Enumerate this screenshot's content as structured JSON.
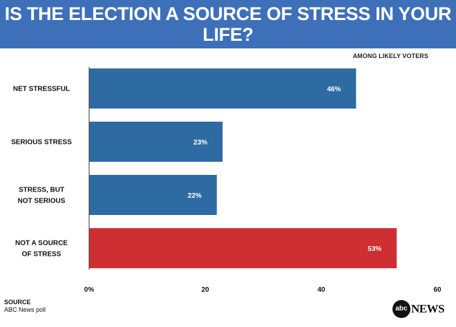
{
  "chart_data": {
    "type": "bar",
    "orientation": "horizontal",
    "title": "IS THE ELECTION A SOURCE OF STRESS IN YOUR LIFE?",
    "subtitle": "AMONG LIKELY VOTERS",
    "categories": [
      "NET STRESSFUL",
      "SERIOUS STRESS",
      "STRESS, BUT NOT SERIOUS",
      "NOT A SOURCE OF STRESS"
    ],
    "category_lines": [
      [
        "NET STRESSFUL"
      ],
      [
        "SERIOUS STRESS"
      ],
      [
        "STRESS, BUT",
        "NOT SERIOUS"
      ],
      [
        "NOT A SOURCE",
        "OF STRESS"
      ]
    ],
    "values": [
      46,
      23,
      22,
      53
    ],
    "value_labels": [
      "46%",
      "23%",
      "22%",
      "53%"
    ],
    "bar_colors": [
      "#2e6ba3",
      "#2e6ba3",
      "#2e6ba3",
      "#cf2e33"
    ],
    "xlim": [
      0,
      60
    ],
    "xticks": [
      0,
      20,
      40,
      60
    ],
    "xtick_labels": [
      "0%",
      "20",
      "40",
      "60"
    ],
    "xlabel": "",
    "ylabel": "",
    "grid": false
  },
  "footer": {
    "source_label": "SOURCE",
    "source_text": "ABC News poll"
  },
  "logo": {
    "circle_text": "abc",
    "word": "NEWS"
  }
}
